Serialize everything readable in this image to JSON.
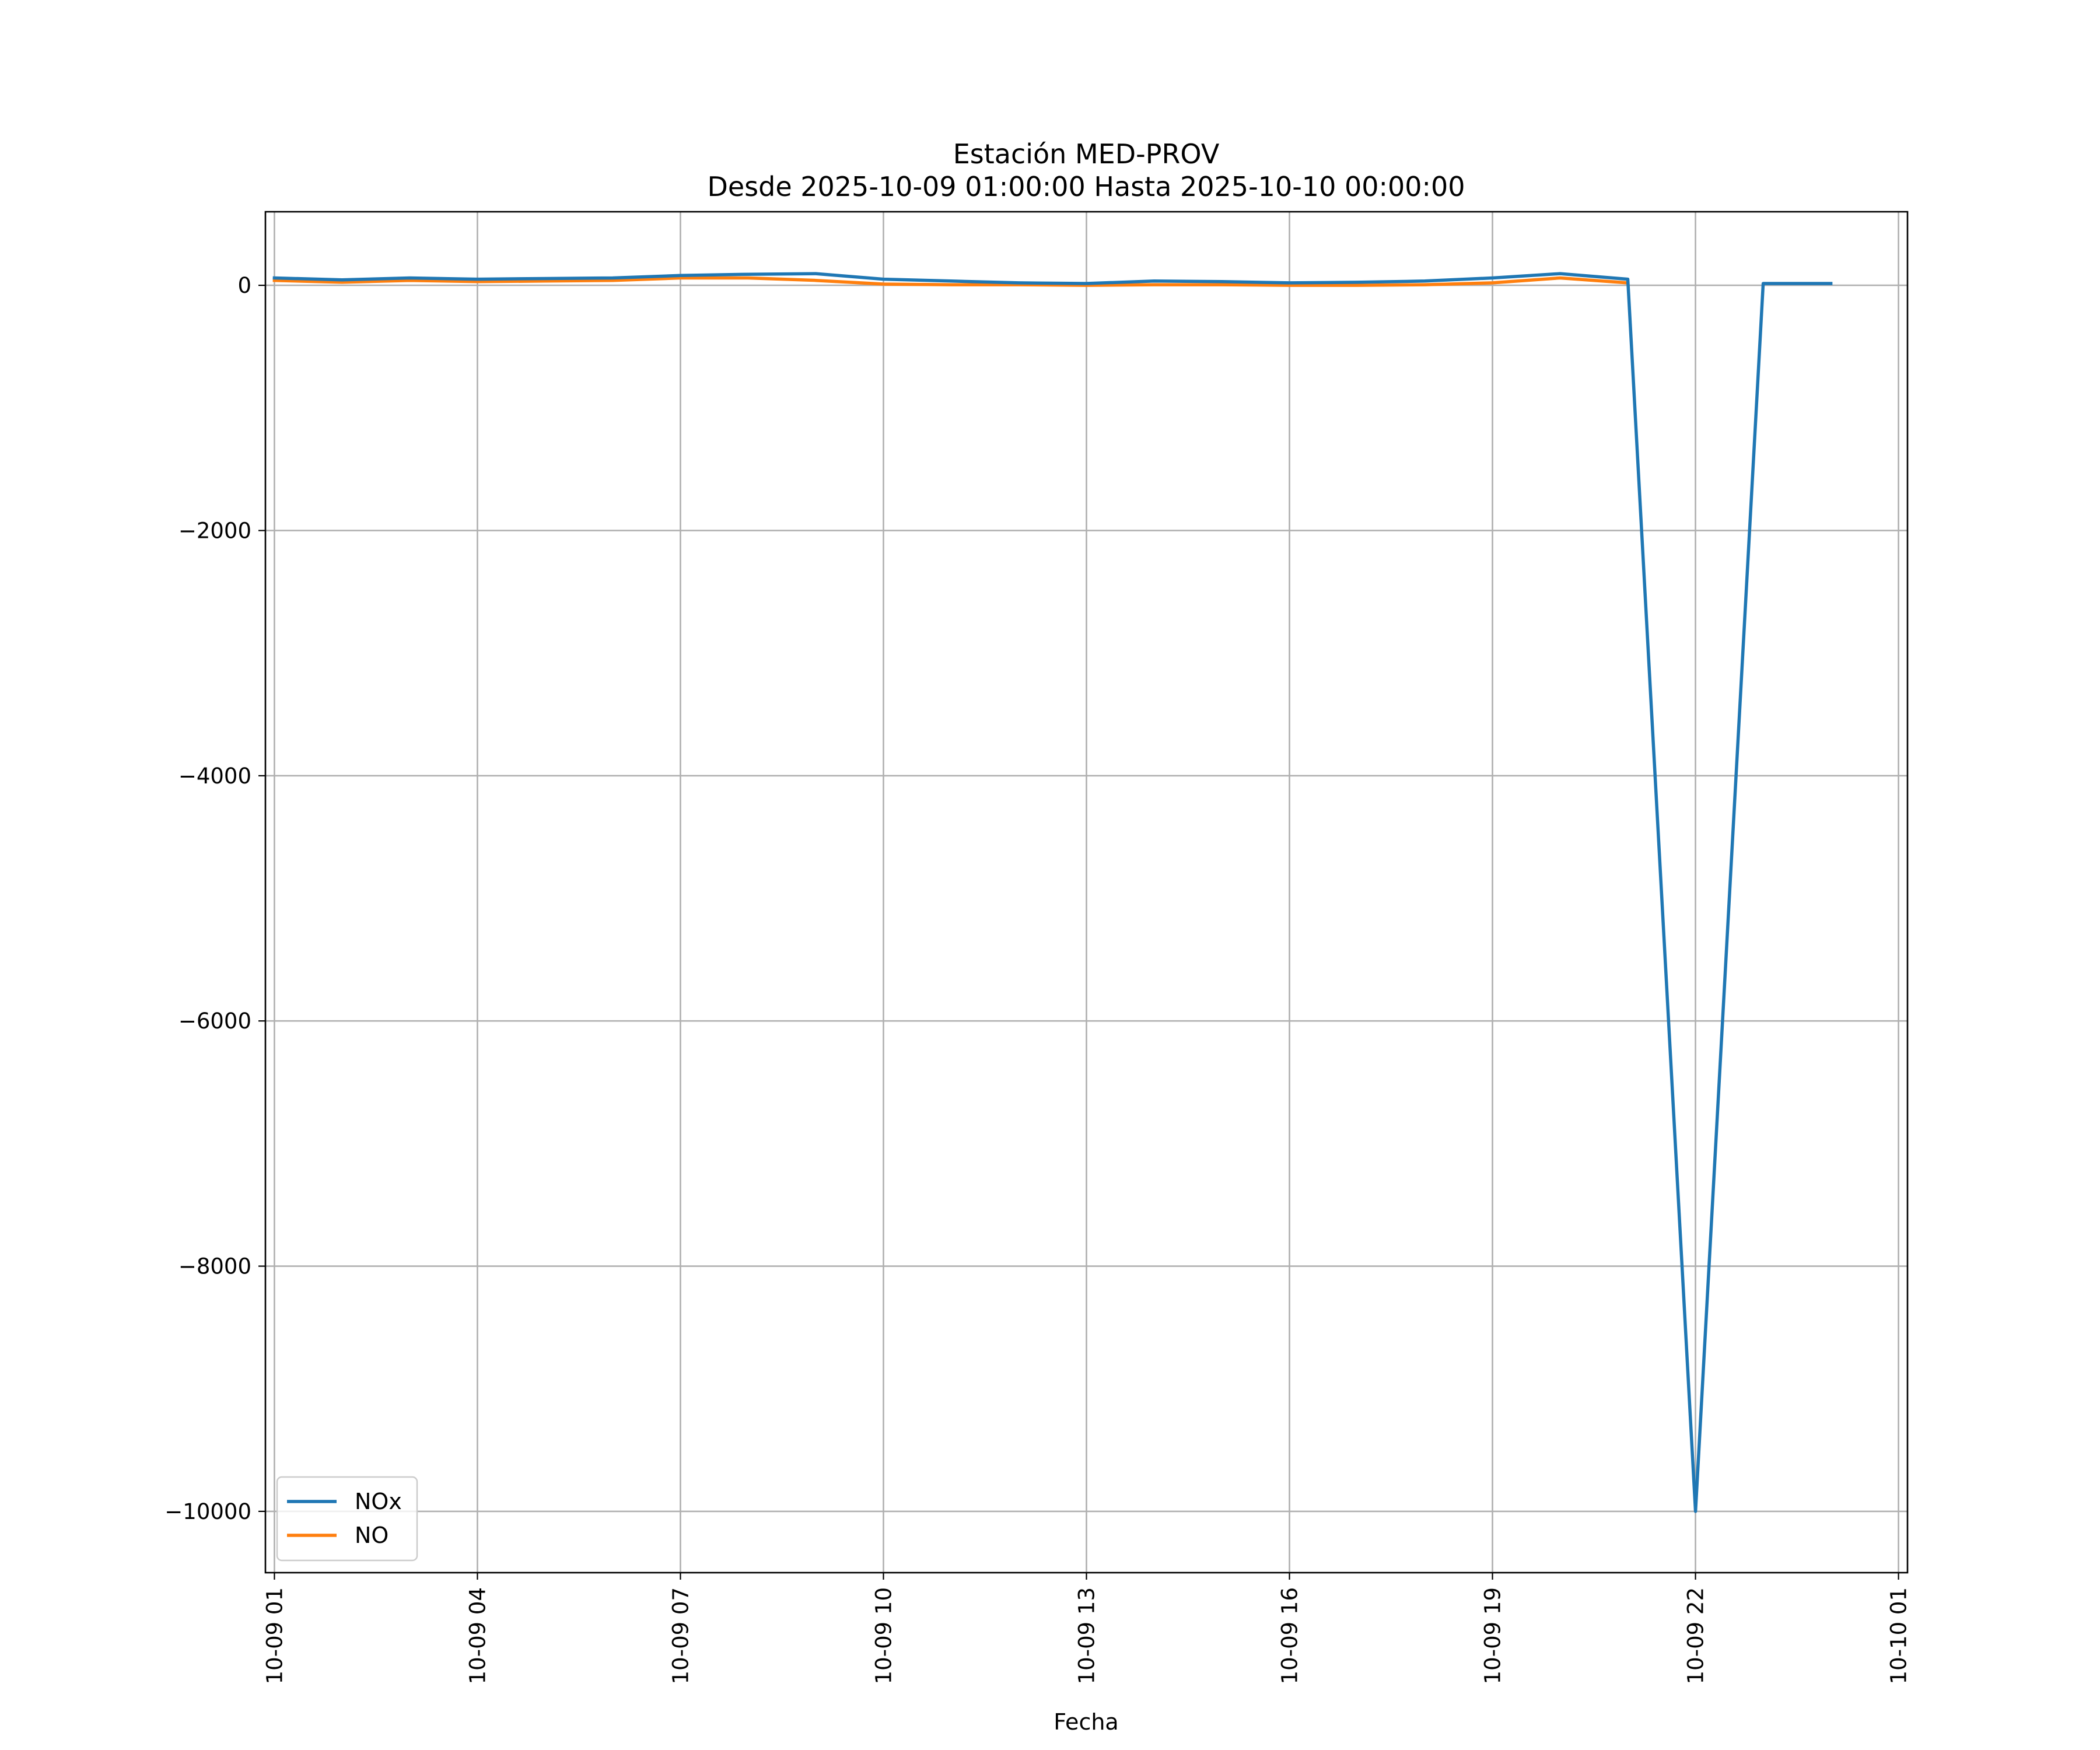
{
  "chart_data": {
    "type": "line",
    "title": "Estación MED-PROV",
    "subtitle": "Desde 2025-10-09 01:00:00 Hasta 2025-10-10 00:00:00",
    "xlabel": "Fecha",
    "ylabel": "",
    "x": [
      "2025-10-09 01:00",
      "2025-10-09 02:00",
      "2025-10-09 03:00",
      "2025-10-09 04:00",
      "2025-10-09 05:00",
      "2025-10-09 06:00",
      "2025-10-09 07:00",
      "2025-10-09 08:00",
      "2025-10-09 09:00",
      "2025-10-09 10:00",
      "2025-10-09 11:00",
      "2025-10-09 12:00",
      "2025-10-09 13:00",
      "2025-10-09 14:00",
      "2025-10-09 15:00",
      "2025-10-09 16:00",
      "2025-10-09 17:00",
      "2025-10-09 18:00",
      "2025-10-09 19:00",
      "2025-10-09 20:00",
      "2025-10-09 21:00",
      "2025-10-09 22:00",
      "2025-10-09 23:00",
      "2025-10-10 00:00"
    ],
    "series": [
      {
        "name": "NOx",
        "color": "#1f77b4",
        "values": [
          60,
          45,
          60,
          50,
          55,
          60,
          80,
          90,
          95,
          50,
          35,
          20,
          15,
          35,
          30,
          20,
          25,
          35,
          60,
          95,
          50,
          -10000,
          15,
          15
        ]
      },
      {
        "name": "NO",
        "color": "#ff7f0e",
        "values": [
          40,
          25,
          40,
          30,
          35,
          40,
          60,
          60,
          40,
          10,
          5,
          5,
          0,
          5,
          5,
          0,
          0,
          5,
          20,
          60,
          20,
          null,
          null,
          null
        ]
      }
    ],
    "x_ticks": [
      "10-09 01",
      "10-09 04",
      "10-09 07",
      "10-09 10",
      "10-09 13",
      "10-09 16",
      "10-09 19",
      "10-09 22",
      "10-10 01"
    ],
    "x_tick_hours": [
      0,
      3,
      6,
      9,
      12,
      15,
      18,
      21,
      24
    ],
    "y_ticks": [
      0,
      -2000,
      -4000,
      -6000,
      -8000,
      -10000
    ],
    "y_tick_labels": [
      "0",
      "−2000",
      "−4000",
      "−6000",
      "−8000",
      "−10000"
    ],
    "xlim": [
      "2025-10-08 23:52",
      "2025-10-10 00:08"
    ],
    "ylim": [
      -10500,
      600
    ],
    "grid": true,
    "legend_position": "lower-left"
  }
}
